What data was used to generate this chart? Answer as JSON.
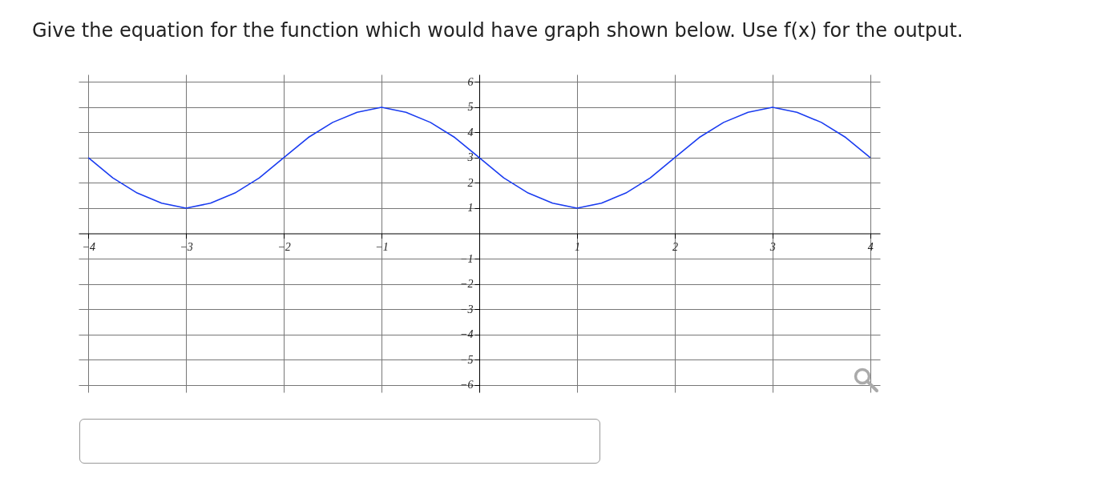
{
  "chart_data": {
    "type": "line",
    "title": "Give the equation for the function which would have graph shown below. Use f(x) for the output.",
    "x": [
      -4,
      -3.75,
      -3.5,
      -3.25,
      -3,
      -2.75,
      -2.5,
      -2.25,
      -2,
      -1.75,
      -1.5,
      -1.25,
      -1,
      -0.75,
      -0.5,
      -0.25,
      0,
      0.25,
      0.5,
      0.75,
      1,
      1.25,
      1.5,
      1.75,
      2,
      2.25,
      2.5,
      2.75,
      3,
      3.25,
      3.5,
      3.75,
      4
    ],
    "values": [
      3,
      2.2,
      1.6,
      1.2,
      1,
      1.2,
      1.6,
      2.2,
      3,
      3.8,
      4.4,
      4.8,
      5,
      4.8,
      4.4,
      3.8,
      3,
      2.2,
      1.6,
      1.2,
      1,
      1.2,
      1.6,
      2.2,
      3,
      3.8,
      4.4,
      4.8,
      5,
      4.8,
      4.4,
      3.8,
      3
    ],
    "color": "#1a3cf0",
    "xlim": [
      -4.1,
      4.1
    ],
    "ylim": [
      -6.3,
      6.3
    ],
    "xticks": [
      -4,
      -3,
      -2,
      -1,
      1,
      2,
      3,
      4
    ],
    "yticks": [
      -6,
      -5,
      -4,
      -3,
      -2,
      -1,
      1,
      2,
      3,
      4,
      5,
      6
    ],
    "grid": true,
    "marker": "none",
    "line_style": "solid"
  }
}
